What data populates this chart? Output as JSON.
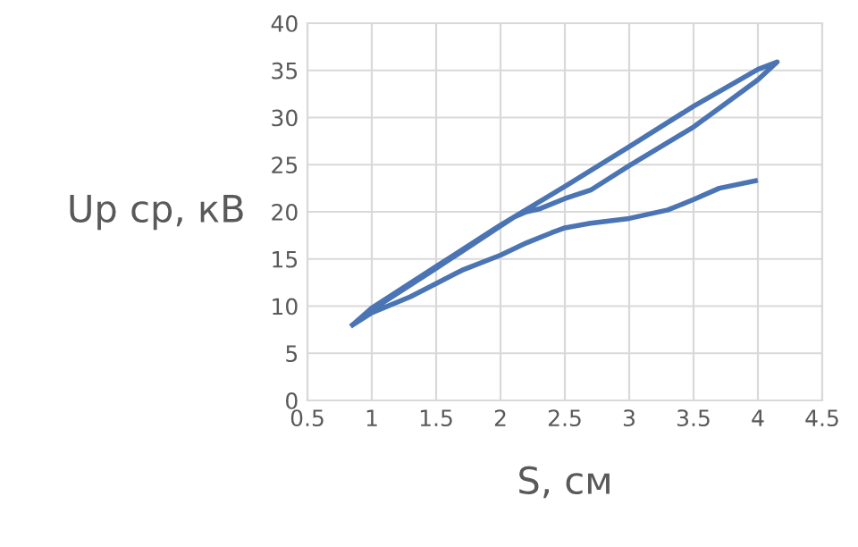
{
  "chart_data": {
    "type": "line",
    "xlabel": "S, см",
    "ylabel": "Uр ср, кВ",
    "series": [
      {
        "color": "#4a74b4",
        "x": [
          3.98,
          3.7,
          3.5,
          3.3,
          3.0,
          2.7,
          2.5,
          2.4,
          2.2,
          2.0,
          1.7,
          1.5,
          1.3,
          1.0,
          0.85,
          1.0,
          1.5,
          2.0,
          2.5,
          3.0,
          3.5,
          4.0,
          4.15,
          4.0,
          3.75,
          3.5,
          3.0,
          2.7,
          2.5,
          2.3,
          2.2,
          2.1,
          1.5,
          1.0,
          0.85
        ],
        "values": [
          23.3,
          22.5,
          21.3,
          20.2,
          19.3,
          18.8,
          18.3,
          17.8,
          16.7,
          15.4,
          13.8,
          12.4,
          11.0,
          9.3,
          8.0,
          9.8,
          14.2,
          18.6,
          22.7,
          26.9,
          31.2,
          35.1,
          35.9,
          34.0,
          31.5,
          29.0,
          24.9,
          22.3,
          21.4,
          20.3,
          20.0,
          19.4,
          14.0,
          9.6,
          8.0
        ]
      }
    ],
    "xlim": [
      0.5,
      4.5
    ],
    "xticks": [
      0.5,
      1,
      1.5,
      2,
      2.5,
      3,
      3.5,
      4,
      4.5
    ],
    "ylim": [
      0,
      40
    ],
    "yticks": [
      0,
      5,
      10,
      15,
      20,
      25,
      30,
      35,
      40
    ],
    "grid": true,
    "marker": "none",
    "line_style": "solid"
  }
}
